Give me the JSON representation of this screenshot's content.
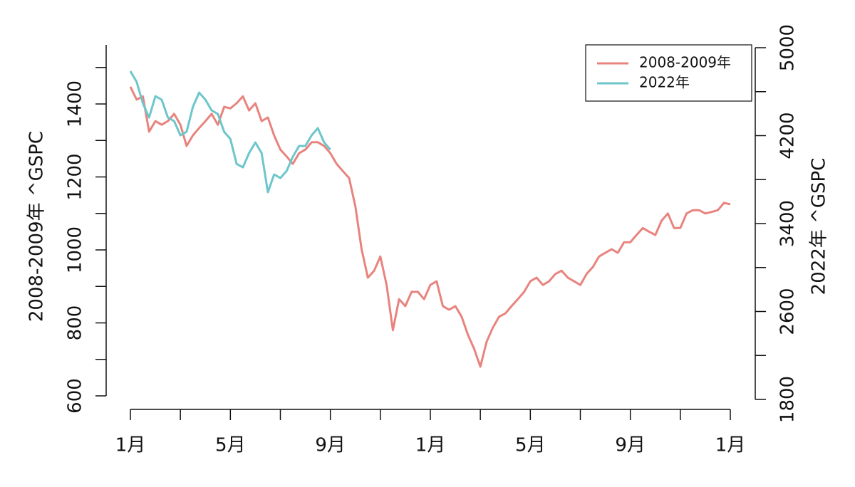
{
  "chart_data": {
    "type": "line",
    "y_label": "2008-2009年 ^GSPC",
    "y2_label": "2022年 ^GSPC",
    "xlim": [
      0,
      24
    ],
    "xticks": [
      {
        "value": 0,
        "label": "1月"
      },
      {
        "value": 2,
        "label": null
      },
      {
        "value": 4,
        "label": "5月"
      },
      {
        "value": 6,
        "label": null
      },
      {
        "value": 8,
        "label": "9月"
      },
      {
        "value": 10,
        "label": null
      },
      {
        "value": 12,
        "label": "1月"
      },
      {
        "value": 14,
        "label": null
      },
      {
        "value": 16,
        "label": "5月"
      },
      {
        "value": 18,
        "label": null
      },
      {
        "value": 20,
        "label": "9月"
      },
      {
        "value": 22,
        "label": null
      },
      {
        "value": 24,
        "label": "1月"
      }
    ],
    "ylim": [
      600,
      1562
    ],
    "yticks": [
      600,
      {
        "value": 700,
        "label": null
      },
      800,
      {
        "value": 900,
        "label": null
      },
      1000,
      {
        "value": 1100,
        "label": null
      },
      1200,
      {
        "value": 1300,
        "label": null
      },
      1400,
      {
        "value": 1500,
        "label": null
      }
    ],
    "y2lim": [
      1800,
      5000
    ],
    "y2ticks": [
      1800,
      {
        "value": 2200,
        "label": null
      },
      2600,
      {
        "value": 3000,
        "label": null
      },
      3400,
      {
        "value": 3800,
        "label": null
      },
      4200,
      {
        "value": 4600,
        "label": null
      },
      5000
    ],
    "legend": "top-right",
    "series": [
      {
        "name": "2008-2009年",
        "color": "#e8837e",
        "x": [
          0,
          0.25,
          0.5,
          0.75,
          1,
          1.25,
          1.5,
          1.75,
          2,
          2.25,
          2.5,
          2.75,
          3,
          3.25,
          3.5,
          3.75,
          4,
          4.25,
          4.5,
          4.75,
          5,
          5.25,
          5.5,
          5.75,
          6,
          6.25,
          6.5,
          6.75,
          7,
          7.25,
          7.5,
          7.75,
          8,
          8.25,
          8.5,
          8.75,
          9,
          9.25,
          9.5,
          9.75,
          10,
          10.25,
          10.5,
          10.75,
          11,
          11.25,
          11.5,
          11.75,
          12,
          12.25,
          12.5,
          12.75,
          13,
          13.25,
          13.5,
          13.75,
          14,
          14.25,
          14.5,
          14.75,
          15,
          15.25,
          15.5,
          15.75,
          16,
          16.25,
          16.5,
          16.75,
          17,
          17.25,
          17.5,
          17.75,
          18,
          18.25,
          18.5,
          18.75,
          19,
          19.25,
          19.5,
          19.75,
          20,
          20.25,
          20.5,
          20.75,
          21,
          21.25,
          21.5,
          21.75,
          22,
          22.25,
          22.5,
          22.75,
          23,
          23.25,
          23.5,
          23.75,
          24
        ],
        "values": [
          1447,
          1412,
          1421,
          1324,
          1353,
          1343,
          1353,
          1373,
          1343,
          1285,
          1314,
          1334,
          1353,
          1373,
          1343,
          1392,
          1388,
          1402,
          1421,
          1382,
          1402,
          1353,
          1363,
          1314,
          1275,
          1256,
          1236,
          1265,
          1275,
          1295,
          1295,
          1285,
          1265,
          1236,
          1216,
          1197,
          1119,
          1002,
          924,
          943,
          982,
          904,
          780,
          865,
          846,
          885,
          885,
          865,
          904,
          914,
          846,
          836,
          846,
          817,
          768,
          729,
          680,
          748,
          787,
          817,
          826,
          846,
          865,
          885,
          914,
          924,
          904,
          914,
          934,
          943,
          924,
          914,
          904,
          934,
          953,
          982,
          992,
          1002,
          992,
          1021,
          1021,
          1041,
          1060,
          1050,
          1041,
          1080,
          1100,
          1060,
          1060,
          1100,
          1109,
          1109,
          1100,
          1104,
          1109,
          1129,
          1125
        ]
      },
      {
        "name": "2022年",
        "color": "#6cc6cb",
        "axis": "y2",
        "x": [
          0,
          0.25,
          0.5,
          0.75,
          1,
          1.25,
          1.5,
          1.75,
          2,
          2.25,
          2.5,
          2.75,
          3,
          3.25,
          3.5,
          3.75,
          4,
          4.25,
          4.5,
          4.75,
          5,
          5.25,
          5.5,
          5.75,
          6,
          6.25,
          6.5,
          6.75,
          7,
          7.25,
          7.5,
          7.75,
          8
        ],
        "values": [
          4786,
          4689,
          4494,
          4365,
          4559,
          4527,
          4365,
          4332,
          4203,
          4235,
          4462,
          4591,
          4527,
          4430,
          4397,
          4235,
          4170,
          3943,
          3911,
          4041,
          4138,
          4041,
          3685,
          3847,
          3814,
          3879,
          4008,
          4106,
          4106,
          4203,
          4268,
          4138,
          4073
        ]
      }
    ]
  }
}
